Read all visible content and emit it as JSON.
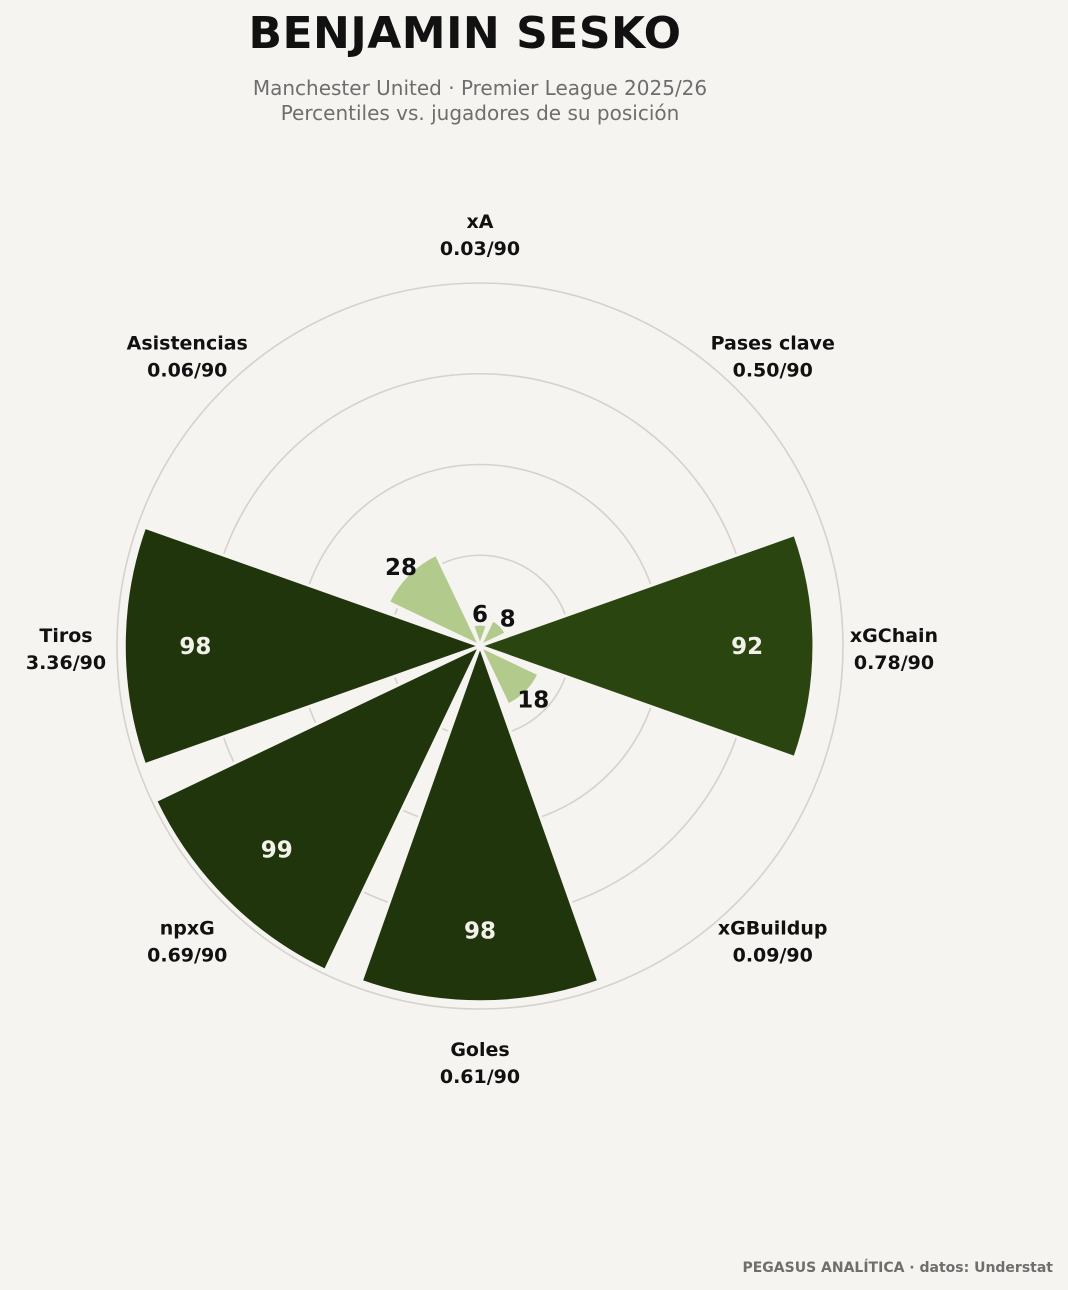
{
  "title": "BENJAMIN SESKO",
  "subtitle_line1": "Manchester United · Premier League 2025/26",
  "subtitle_line2": "Percentiles vs. jugadores de su posición",
  "footer": "PEGASUS ANALÍTICA · datos: Understat",
  "colors": {
    "background": "#f5f4f0",
    "grid": "#d5d2cc",
    "high": "#20350b",
    "high_alt": "#2b4511",
    "low": "#b3ca8d",
    "label_dark": "#111111",
    "label_light": "#f2f2ea"
  },
  "chart_data": {
    "type": "polar-bar",
    "rlim": [
      0,
      100
    ],
    "gridlines": [
      25,
      50,
      75,
      100
    ],
    "categories": [
      {
        "name": "xA",
        "value_label": "0.03/90",
        "percentile": 6
      },
      {
        "name": "Pases clave",
        "value_label": "0.50/90",
        "percentile": 8
      },
      {
        "name": "xGChain",
        "value_label": "0.78/90",
        "percentile": 92
      },
      {
        "name": "xGBuildup",
        "value_label": "0.09/90",
        "percentile": 18
      },
      {
        "name": "Goles",
        "value_label": "0.61/90",
        "percentile": 98
      },
      {
        "name": "npxG",
        "value_label": "0.69/90",
        "percentile": 99
      },
      {
        "name": "Tiros",
        "value_label": "3.36/90",
        "percentile": 98
      },
      {
        "name": "Asistencias",
        "value_label": "0.06/90",
        "percentile": 28
      }
    ]
  }
}
